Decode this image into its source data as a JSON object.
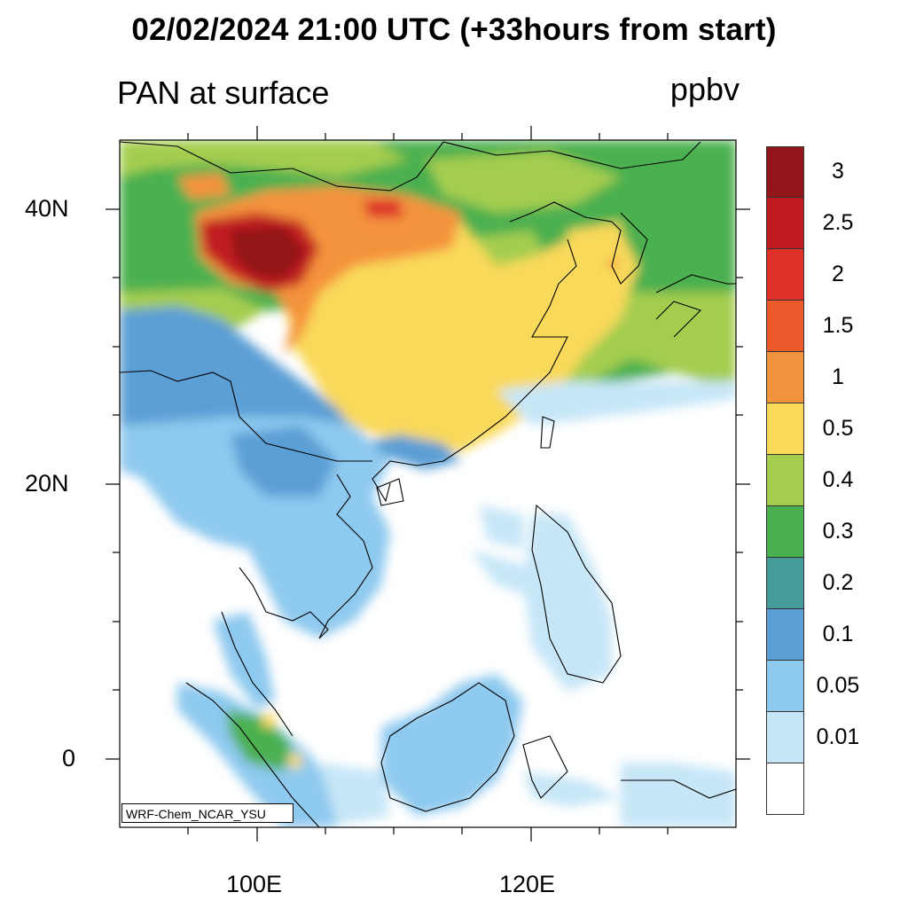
{
  "title": "02/02/2024 21:00 UTC (+33hours from start)",
  "subtitle": "PAN at surface",
  "units": "ppbv",
  "credit": "WRF-Chem_NCAR_YSU",
  "lat_labels": [
    "40N",
    "20N",
    "0"
  ],
  "lon_labels": [
    "100E",
    "120E"
  ],
  "legend": {
    "labels": [
      "3",
      "2.5",
      "2",
      "1.5",
      "1",
      "0.5",
      "0.4",
      "0.3",
      "0.2",
      "0.1",
      "0.05",
      "0.01"
    ],
    "colors": [
      "#921519",
      "#c11b22",
      "#dd3129",
      "#eb5a2a",
      "#f4933d",
      "#f9d95a",
      "#a4cd4f",
      "#4bb04f",
      "#469c9a",
      "#5b9fd5",
      "#8ec9ef",
      "#c6e6f7",
      "#ffffff"
    ]
  },
  "map": {
    "region": "East and Southeast Asia",
    "lon_range": [
      90,
      135
    ],
    "lat_range": [
      -5,
      45
    ]
  }
}
